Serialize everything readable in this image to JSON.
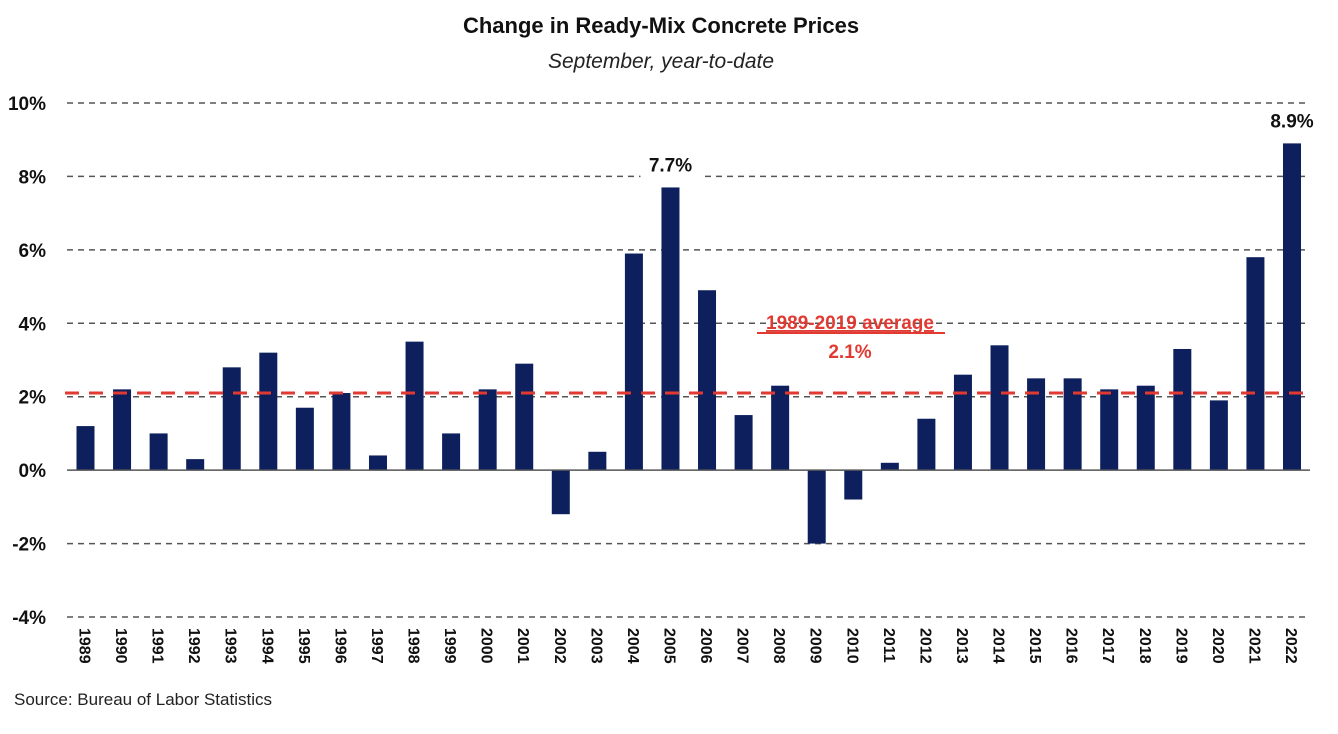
{
  "chart_data": {
    "type": "bar",
    "title": "Change in Ready-Mix Concrete Prices",
    "subtitle": "September, year-to-date",
    "xlabel": "",
    "ylabel": "",
    "categories": [
      "1989",
      "1990",
      "1991",
      "1992",
      "1993",
      "1994",
      "1995",
      "1996",
      "1997",
      "1998",
      "1999",
      "2000",
      "2001",
      "2002",
      "2003",
      "2004",
      "2005",
      "2006",
      "2007",
      "2008",
      "2009",
      "2010",
      "2011",
      "2012",
      "2013",
      "2014",
      "2015",
      "2016",
      "2017",
      "2018",
      "2019",
      "2020",
      "2021",
      "2022"
    ],
    "values": [
      1.2,
      2.2,
      1.0,
      0.3,
      2.8,
      3.2,
      1.7,
      2.1,
      0.4,
      3.5,
      1.0,
      2.2,
      2.9,
      -1.2,
      0.5,
      5.9,
      7.7,
      4.9,
      1.5,
      2.3,
      -2.0,
      -0.8,
      0.2,
      1.4,
      2.6,
      3.4,
      2.5,
      2.5,
      2.2,
      2.3,
      3.3,
      1.9,
      5.8,
      8.9
    ],
    "unit": "%",
    "ylim": [
      -4,
      10
    ],
    "yticks": [
      10,
      8,
      6,
      4,
      2,
      0,
      -2,
      -4
    ],
    "ytick_labels": [
      "10%",
      "8%",
      "6%",
      "4%",
      "2%",
      "0%",
      "-2%",
      "-4%"
    ],
    "grid": "horizontal dashed",
    "bar_color": "#0d1f5c",
    "data_labels": [
      {
        "category": "2005",
        "text": "7.7%"
      },
      {
        "category": "2022",
        "text": "8.9%"
      }
    ],
    "reference_line": {
      "value": 2.1,
      "color": "#e03a32",
      "style": "dashed",
      "label_line1": "1989-2019 average",
      "label_line2": "2.1%"
    },
    "source": "Source: Bureau of Labor Statistics"
  }
}
